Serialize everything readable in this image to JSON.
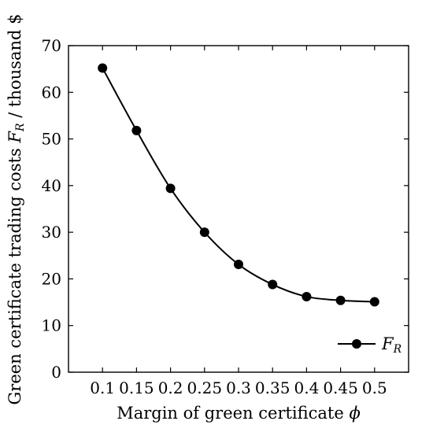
{
  "chart_data": {
    "type": "line",
    "x": [
      0.1,
      0.15,
      0.2,
      0.25,
      0.3,
      0.35,
      0.4,
      0.45,
      0.5
    ],
    "x_tick_labels": [
      "0.1",
      "0.15",
      "0.2",
      "0.25",
      "0.3",
      "0.35",
      "0.4",
      "0.45",
      "0.5"
    ],
    "y_ticks": [
      0,
      10,
      20,
      30,
      40,
      50,
      60,
      70
    ],
    "y_tick_labels": [
      "0",
      "10",
      "20",
      "30",
      "40",
      "50",
      "60",
      "70"
    ],
    "series": [
      {
        "name": "F_R",
        "values": [
          65.2,
          51.8,
          39.4,
          30.0,
          23.1,
          18.8,
          16.2,
          15.4,
          15.1
        ],
        "color": "#000000",
        "marker": "circle"
      }
    ],
    "xlabel": "Margin of green certificate ϕ",
    "ylabel": "Green certificate trading costs F_R / thousand $",
    "xlim": [
      0.05,
      0.55
    ],
    "ylim": [
      0,
      70
    ],
    "grid": false,
    "legend": {
      "position": "bottom-right",
      "label": "F_R"
    }
  }
}
